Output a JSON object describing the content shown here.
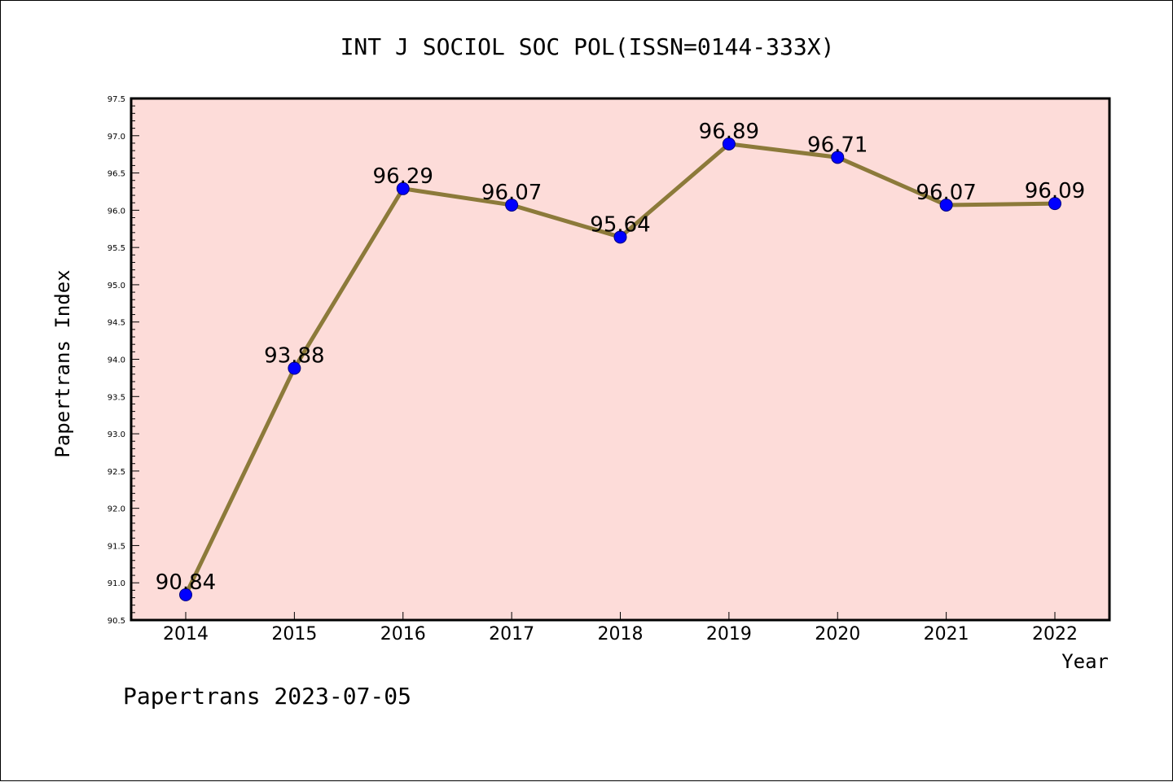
{
  "chart_data": {
    "type": "line",
    "title": "INT J SOCIOL SOC POL(ISSN=0144-333X)",
    "xlabel": "Year",
    "ylabel": "Papertrans Index",
    "categories": [
      "2014",
      "2015",
      "2016",
      "2017",
      "2018",
      "2019",
      "2020",
      "2021",
      "2022"
    ],
    "series": [
      {
        "values": [
          90.84,
          93.88,
          96.29,
          96.07,
          95.64,
          96.89,
          96.71,
          96.07,
          96.09
        ],
        "data_labels": [
          "90.84",
          "93.88",
          "96.29",
          "96.07",
          "95.64",
          "96.89",
          "96.71",
          "96.07",
          "96.09"
        ]
      }
    ],
    "ylim": [
      90.5,
      97.5
    ],
    "yticks": [
      "90.5",
      "91.0",
      "91.5",
      "92.0",
      "92.5",
      "93.0",
      "93.5",
      "94.0",
      "94.5",
      "95.0",
      "95.5",
      "96.0",
      "96.5",
      "97.0",
      "97.5"
    ],
    "grid": false,
    "colors": {
      "plot_background": "#fddcd9",
      "line": "#8c7a3a",
      "marker": "#0000ff",
      "marker_edge": "#000080"
    }
  },
  "footer": "Papertrans 2023-07-05"
}
